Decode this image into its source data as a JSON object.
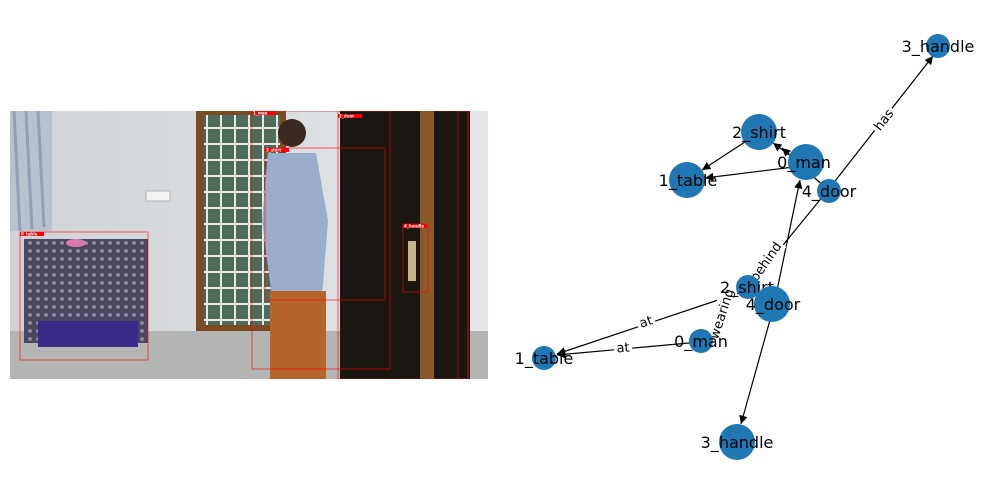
{
  "scene": {
    "boxes": [
      {
        "id": "0_table",
        "tag": "0_table"
      },
      {
        "id": "1_man",
        "tag": "1_man"
      },
      {
        "id": "2_door",
        "tag": "2_door"
      },
      {
        "id": "3_shirt",
        "tag": "3_shirt"
      },
      {
        "id": "4_handle",
        "tag": "4_handle"
      },
      {
        "id": "5_door",
        "tag": ""
      }
    ]
  },
  "graph": {
    "nodes": [
      {
        "id": "3_handle_top",
        "label": "3_handle"
      },
      {
        "id": "2_shirt_top",
        "label": "2_shirt"
      },
      {
        "id": "0_man_top",
        "label": "0_man"
      },
      {
        "id": "1_table_top",
        "label": "1_table"
      },
      {
        "id": "4_door_top",
        "label": "4_door"
      },
      {
        "id": "2_shirt_bot",
        "label": "2_shirt"
      },
      {
        "id": "4_door_bot",
        "label": "4_door"
      },
      {
        "id": "1_table_bot",
        "label": "1_table"
      },
      {
        "id": "0_man_bot",
        "label": "0_man"
      },
      {
        "id": "3_handle_bot",
        "label": "3_handle"
      }
    ],
    "edges": [
      {
        "id": "e1",
        "label": "has"
      },
      {
        "id": "e2",
        "label": "behind"
      },
      {
        "id": "e3",
        "label": "wearing"
      },
      {
        "id": "e4",
        "label": "at"
      },
      {
        "id": "e5",
        "label": "at"
      }
    ],
    "colors": {
      "node": "#1f77b4",
      "edge": "#000000",
      "box": "#ff0000"
    }
  }
}
